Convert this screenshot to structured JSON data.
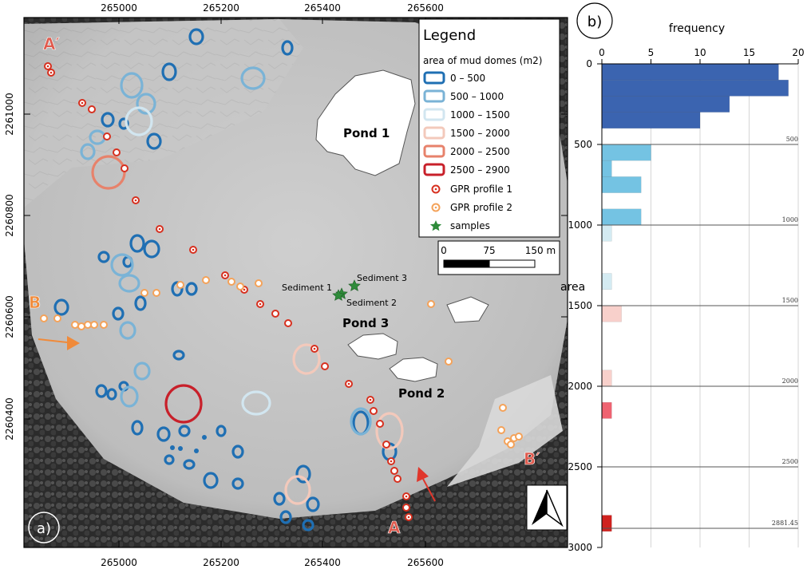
{
  "map": {
    "panel_label": "a)",
    "x_ticks": [
      "265000",
      "265200",
      "265400",
      "265600"
    ],
    "y_ticks": [
      "2261000",
      "2260800",
      "2260600",
      "2260400"
    ],
    "places": [
      "Pond 1",
      "Pond 2",
      "Pond 3"
    ],
    "samples": [
      "Sediment 1",
      "Sediment 2",
      "Sediment 3"
    ],
    "profile_markers": {
      "a": "A",
      "a_prime": "A′",
      "b": "B",
      "b_prime": "B′"
    },
    "legend": {
      "title": "Legend",
      "subtitle": "area of mud domes (m2)",
      "classes": [
        {
          "label": "0 – 500",
          "color": "#1f6fb3"
        },
        {
          "label": "500 – 1000",
          "color": "#7ab3d6"
        },
        {
          "label": "1000 – 1500",
          "color": "#d2e6f0"
        },
        {
          "label": "1500 – 2000",
          "color": "#f3c9bb"
        },
        {
          "label": "2000 – 2500",
          "color": "#e7826b"
        },
        {
          "label": "2500 – 2900",
          "color": "#c8202a"
        }
      ],
      "gpr1": "GPR profile 1",
      "gpr2": "GPR profile 2",
      "samples_label": "samples",
      "gpr1_color": "#d7301f",
      "gpr2_color": "#f4a259",
      "sample_color": "#2e8b3a"
    },
    "scalebar": {
      "labels": [
        "0",
        "75",
        "150 m"
      ]
    },
    "north_arrow": "north-arrow"
  },
  "freq_panel": {
    "panel_label": "b)",
    "x_title": "frequency",
    "y_title": "area",
    "x_ticks": [
      "0",
      "5",
      "10",
      "15",
      "20"
    ],
    "y_ticks": [
      "0",
      "500",
      "1000",
      "1500",
      "2000",
      "2500",
      "3000"
    ],
    "threshold_labels": [
      "500",
      "1000",
      "1500",
      "2000",
      "2500",
      "2881.45"
    ]
  },
  "chart_data": {
    "type": "bar",
    "orientation": "horizontal",
    "x_title": "frequency",
    "y_title": "area",
    "xlim": [
      0,
      20
    ],
    "ylim": [
      0,
      3000
    ],
    "bin_width": 100,
    "thresholds": [
      500,
      1000,
      1500,
      2000,
      2500,
      2881.45
    ],
    "bins": [
      {
        "from": 0,
        "to": 100,
        "count": 18,
        "color": "#3b64b0"
      },
      {
        "from": 100,
        "to": 200,
        "count": 19,
        "color": "#3b64b0"
      },
      {
        "from": 200,
        "to": 300,
        "count": 13,
        "color": "#3b64b0"
      },
      {
        "from": 300,
        "to": 400,
        "count": 10,
        "color": "#3b64b0"
      },
      {
        "from": 400,
        "to": 500,
        "count": 0,
        "color": "#3b64b0"
      },
      {
        "from": 500,
        "to": 600,
        "count": 5,
        "color": "#74c3e3"
      },
      {
        "from": 600,
        "to": 700,
        "count": 1,
        "color": "#74c3e3"
      },
      {
        "from": 700,
        "to": 800,
        "count": 4,
        "color": "#74c3e3"
      },
      {
        "from": 900,
        "to": 1000,
        "count": 4,
        "color": "#74c3e3"
      },
      {
        "from": 1000,
        "to": 1100,
        "count": 1,
        "color": "#d4ebf2"
      },
      {
        "from": 1300,
        "to": 1400,
        "count": 1,
        "color": "#d4ebf2"
      },
      {
        "from": 1500,
        "to": 1600,
        "count": 2,
        "color": "#f8d0cb"
      },
      {
        "from": 1900,
        "to": 2000,
        "count": 1,
        "color": "#f8d0cb"
      },
      {
        "from": 2100,
        "to": 2200,
        "count": 1,
        "color": "#ef6371"
      },
      {
        "from": 2800,
        "to": 2900,
        "count": 1,
        "color": "#d0211e"
      }
    ]
  }
}
